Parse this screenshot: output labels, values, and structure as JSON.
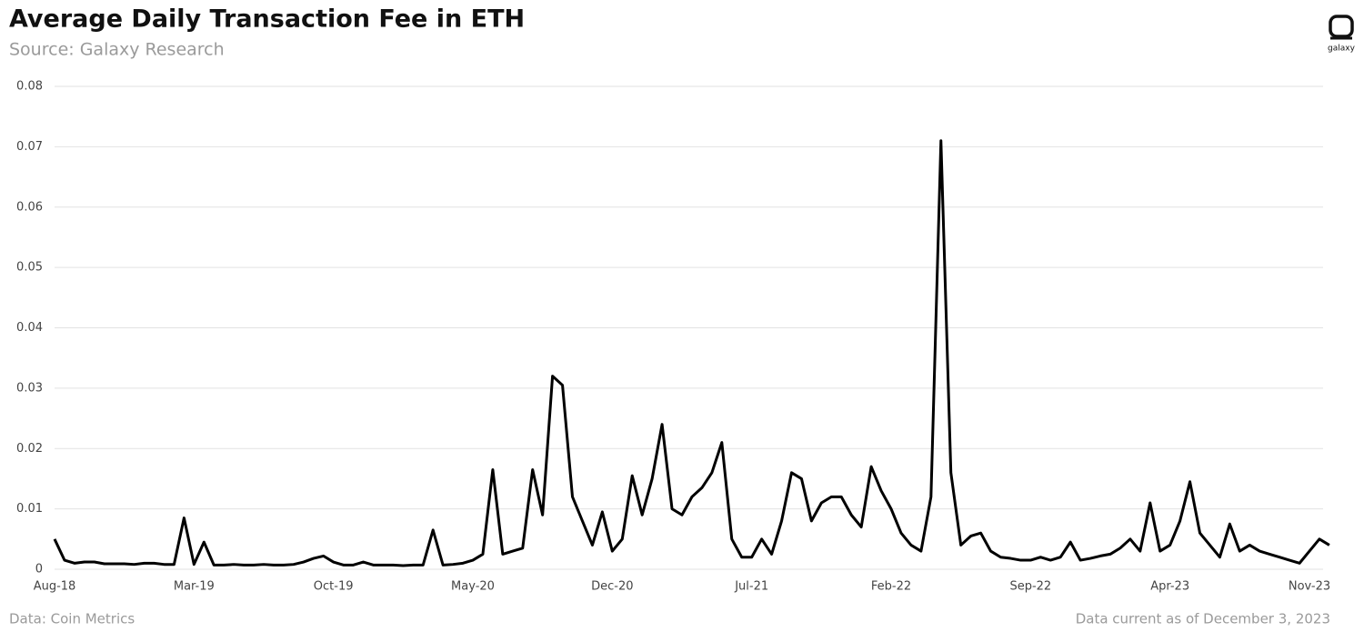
{
  "chart_data": {
    "type": "line",
    "title": "Average Daily Transaction Fee in ETH",
    "subtitle": "Source: Galaxy Research",
    "source_note": "Data: Coin Metrics",
    "date_note": "Data current as of December 3, 2023",
    "logo_label": "galaxy",
    "categories": [
      "Aug-18",
      null,
      null,
      null,
      null,
      null,
      null,
      null,
      null,
      null,
      null,
      null,
      null,
      null,
      "Mar-19",
      null,
      null,
      null,
      null,
      null,
      null,
      null,
      null,
      null,
      null,
      null,
      null,
      null,
      "Oct-19",
      null,
      null,
      null,
      null,
      null,
      null,
      null,
      null,
      null,
      null,
      null,
      null,
      null,
      "May-20",
      null,
      null,
      null,
      null,
      null,
      null,
      null,
      null,
      null,
      null,
      null,
      null,
      null,
      "Dec-20",
      null,
      null,
      null,
      null,
      null,
      null,
      null,
      null,
      null,
      null,
      null,
      null,
      null,
      "Jul-21",
      null,
      null,
      null,
      null,
      null,
      null,
      null,
      null,
      null,
      null,
      null,
      null,
      null,
      "Feb-22",
      null,
      null,
      null,
      null,
      null,
      null,
      null,
      null,
      null,
      null,
      null,
      null,
      null,
      "Sep-22",
      null,
      null,
      null,
      null,
      null,
      null,
      null,
      null,
      null,
      null,
      null,
      null,
      null,
      "Apr-23",
      null,
      null,
      null,
      null,
      null,
      null,
      null,
      null,
      null,
      null,
      null,
      null,
      null,
      "Nov-23",
      null,
      null
    ],
    "series": [
      {
        "name": "Average Daily Transaction Fee",
        "color": "#000000",
        "values": [
          0.005,
          0.0015,
          0.001,
          0.0012,
          0.0012,
          0.0009,
          0.0009,
          0.0009,
          0.0008,
          0.001,
          0.001,
          0.0008,
          0.0008,
          0.0085,
          0.0008,
          0.0045,
          0.0007,
          0.0007,
          0.0008,
          0.0007,
          0.0007,
          0.0008,
          0.0007,
          0.0007,
          0.0008,
          0.0012,
          0.0018,
          0.0022,
          0.0012,
          0.0007,
          0.0007,
          0.0012,
          0.0007,
          0.0007,
          0.0007,
          0.0006,
          0.0007,
          0.0007,
          0.0065,
          0.0007,
          0.0008,
          0.001,
          0.0015,
          0.0025,
          0.0165,
          0.0025,
          0.003,
          0.0035,
          0.0165,
          0.009,
          0.032,
          0.0305,
          0.012,
          0.008,
          0.004,
          0.0095,
          0.003,
          0.005,
          0.0155,
          0.009,
          0.015,
          0.024,
          0.01,
          0.009,
          0.012,
          0.0135,
          0.016,
          0.021,
          0.005,
          0.002,
          0.002,
          0.005,
          0.0025,
          0.008,
          0.016,
          0.015,
          0.008,
          0.011,
          0.012,
          0.012,
          0.009,
          0.007,
          0.017,
          0.013,
          0.01,
          0.006,
          0.004,
          0.003,
          0.012,
          0.071,
          0.016,
          0.004,
          0.0055,
          0.006,
          0.003,
          0.002,
          0.0018,
          0.0015,
          0.0015,
          0.002,
          0.0015,
          0.002,
          0.0045,
          0.0015,
          0.0018,
          0.0022,
          0.0025,
          0.0035,
          0.005,
          0.003,
          0.011,
          0.003,
          0.004,
          0.008,
          0.0145,
          0.006,
          0.004,
          0.002,
          0.0075,
          0.003,
          0.004,
          0.003,
          0.0025,
          0.002,
          0.0015,
          0.001,
          0.003,
          0.005,
          0.004
        ]
      }
    ],
    "ylim": [
      0,
      0.08
    ],
    "yticks": [
      0,
      0.01,
      0.02,
      0.03,
      0.04,
      0.05,
      0.06,
      0.07,
      0.08
    ],
    "grid": true
  }
}
